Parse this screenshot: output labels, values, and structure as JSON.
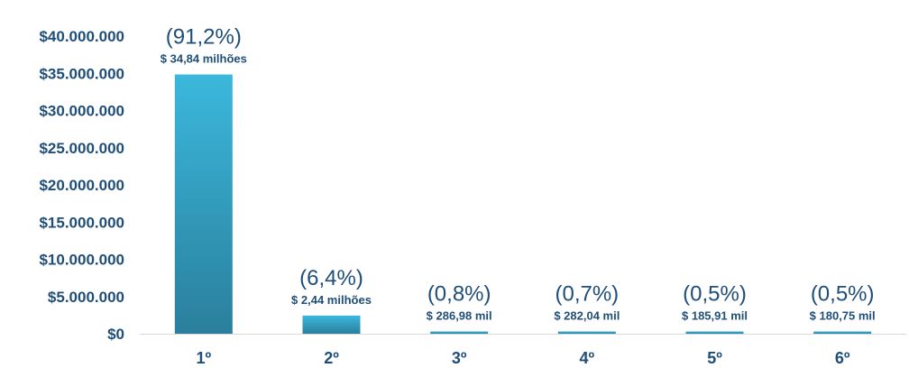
{
  "chart_data": {
    "type": "bar",
    "title": "",
    "xlabel": "",
    "ylabel": "",
    "categories": [
      "1º",
      "2º",
      "3º",
      "4º",
      "5º",
      "6º"
    ],
    "values": [
      34840000,
      2440000,
      286980,
      282040,
      185910,
      180750
    ],
    "percent_labels": [
      "(91,2%)",
      "(6,4%)",
      "(0,8%)",
      "(0,7%)",
      "(0,5%)",
      "(0,5%)"
    ],
    "value_labels": [
      "$ 34,84 milhões",
      "$ 2,44 milhões",
      "$ 286,98 mil",
      "$ 282,04 mil",
      "$ 185,91 mil",
      "$ 180,75 mil"
    ],
    "ylim": [
      0,
      40000000
    ],
    "y_ticks": [
      0,
      5000000,
      10000000,
      15000000,
      20000000,
      25000000,
      30000000,
      35000000,
      40000000
    ],
    "y_tick_labels": [
      "$0",
      "$5.000.000",
      "$10.000.000",
      "$15.000.000",
      "$20.000.000",
      "$25.000.000",
      "$30.000.000",
      "$35.000.000",
      "$40.000.000"
    ],
    "grid": false,
    "colors": {
      "text": "#1f4e79",
      "bar_top": "#3bb8dc",
      "bar_bottom": "#2a7f9c",
      "axis": "#d9d9d9"
    }
  }
}
